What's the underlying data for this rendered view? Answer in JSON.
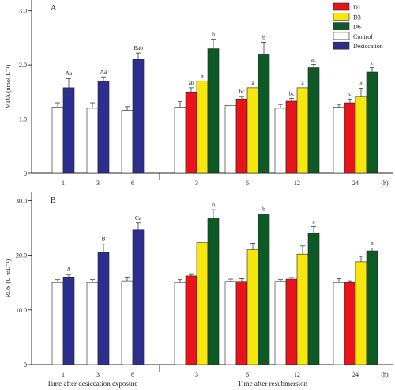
{
  "legend": {
    "position": "top-right",
    "items": [
      {
        "label": "D1",
        "color": "#e8141b"
      },
      {
        "label": "D3",
        "color": "#f7e70f"
      },
      {
        "label": "D6",
        "color": "#0d5a26"
      },
      {
        "label": "Control",
        "color": "#ffffff"
      },
      {
        "label": "Desiccation",
        "color": "#2e2e8f"
      }
    ]
  },
  "xlabels": {
    "left": "Time after desiccation exposure",
    "right": "Time after resubmersion"
  },
  "chart_data": [
    {
      "type": "bar",
      "panel_label": "A",
      "ylabel": "MDA (nmol L⁻¹)",
      "ylim": [
        0,
        3.2
      ],
      "yticks": [
        "0",
        "1.0",
        "2.0",
        "3.0"
      ],
      "ytick_values": [
        0,
        1,
        2,
        3
      ],
      "x_unit": "(h)",
      "desiccation_groups": [
        {
          "time": "1",
          "control": 1.22,
          "control_err": 0.08,
          "desiccation": 1.58,
          "desiccation_err": 0.17,
          "letters": "Aa"
        },
        {
          "time": "3",
          "control": 1.2,
          "control_err": 0.1,
          "desiccation": 1.7,
          "desiccation_err": 0.08,
          "letters": "Aa"
        },
        {
          "time": "6",
          "control": 1.16,
          "control_err": 0.07,
          "desiccation": 2.1,
          "desiccation_err": 0.12,
          "letters": "Bab"
        }
      ],
      "resubmersion_groups": [
        {
          "time": "3",
          "control": 1.22,
          "control_err": 0.1,
          "D1": 1.5,
          "D1_err": 0.08,
          "D3": 1.7,
          "D3_err": 0.0,
          "D6": 2.3,
          "D6_err": 0.18,
          "letters": [
            "ab",
            "a",
            "b"
          ]
        },
        {
          "time": "6",
          "control": 1.25,
          "control_err": 0.0,
          "D1": 1.37,
          "D1_err": 0.05,
          "D3": 1.58,
          "D3_err": 0.0,
          "D6": 2.2,
          "D6_err": 0.22,
          "letters": [
            "bc",
            "a",
            "b"
          ]
        },
        {
          "time": "12",
          "control": 1.2,
          "control_err": 0.07,
          "D1": 1.33,
          "D1_err": 0.05,
          "D3": 1.58,
          "D3_err": 0.0,
          "D6": 1.95,
          "D6_err": 0.06,
          "letters": [
            "bc",
            "a",
            "ac"
          ]
        },
        {
          "time": "24",
          "control": 1.22,
          "control_err": 0.05,
          "D1": 1.3,
          "D1_err": 0.07,
          "D3": 1.42,
          "D3_err": 0.15,
          "D6": 1.87,
          "D6_err": 0.08,
          "letters": [
            "c",
            "a",
            "c"
          ]
        }
      ]
    },
    {
      "type": "bar",
      "panel_label": "B",
      "ylabel": "ROS (U mL⁻¹)",
      "ylim": [
        0,
        31.5
      ],
      "yticks": [
        "0",
        "10.0",
        "20.0",
        "30.0"
      ],
      "ytick_values": [
        0,
        10,
        20,
        30
      ],
      "x_unit": "(h)",
      "desiccation_groups": [
        {
          "time": "1",
          "control": 15.0,
          "control_err": 0.5,
          "desiccation": 16.0,
          "desiccation_err": 0.5,
          "letters": "A"
        },
        {
          "time": "3",
          "control": 15.0,
          "control_err": 0.5,
          "desiccation": 20.5,
          "desiccation_err": 1.5,
          "letters": "B"
        },
        {
          "time": "6",
          "control": 15.3,
          "control_err": 0.7,
          "desiccation": 24.6,
          "desiccation_err": 1.3,
          "letters": "Ca"
        }
      ],
      "resubmersion_groups": [
        {
          "time": "3",
          "control": 15.0,
          "control_err": 0.5,
          "D1": 16.2,
          "D1_err": 0.4,
          "D3": 22.3,
          "D3_err": 0.0,
          "D6": 26.8,
          "D6_err": 1.5,
          "letters": [
            "",
            "",
            "b"
          ]
        },
        {
          "time": "6",
          "control": 15.2,
          "control_err": 0.4,
          "D1": 15.2,
          "D1_err": 0.5,
          "D3": 21.0,
          "D3_err": 1.2,
          "D6": 27.5,
          "D6_err": 0.0,
          "letters": [
            "",
            "",
            "b"
          ]
        },
        {
          "time": "12",
          "control": 15.2,
          "control_err": 0.3,
          "D1": 15.6,
          "D1_err": 0.3,
          "D3": 20.2,
          "D3_err": 1.5,
          "D6": 24.0,
          "D6_err": 1.2,
          "letters": [
            "",
            "",
            "a"
          ]
        },
        {
          "time": "24",
          "control": 15.0,
          "control_err": 0.7,
          "D1": 15.0,
          "D1_err": 0.3,
          "D3": 18.8,
          "D3_err": 1.0,
          "D6": 20.8,
          "D6_err": 0.5,
          "letters": [
            "",
            "",
            "a"
          ]
        }
      ]
    }
  ]
}
